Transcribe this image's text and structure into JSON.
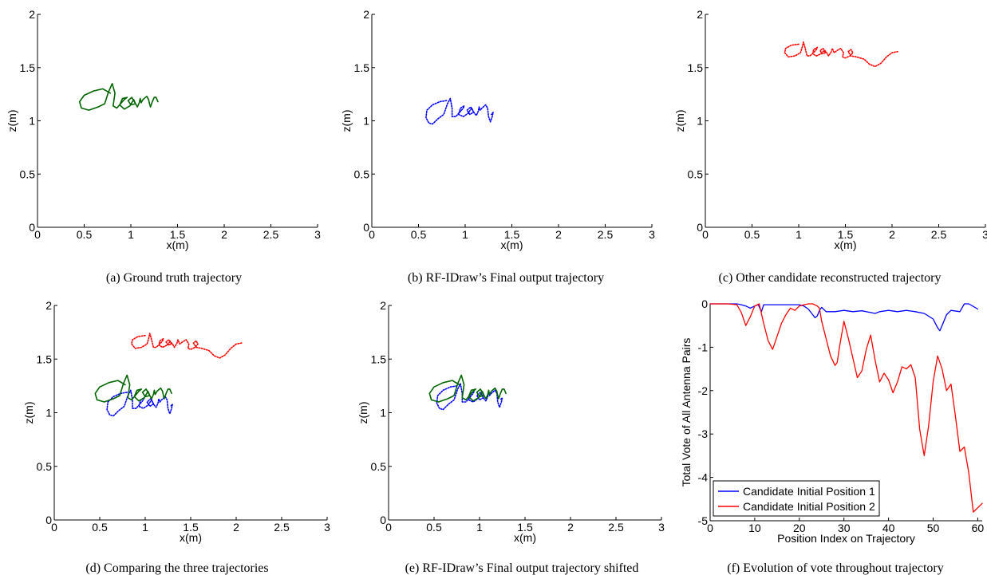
{
  "chart_data": [
    {
      "id": "a",
      "type": "line",
      "caption": "(a) Ground truth trajectory",
      "xlabel": "x(m)",
      "ylabel": "z(m)",
      "xlim": [
        0,
        3
      ],
      "ylim": [
        0,
        2
      ],
      "xticks": [
        "0",
        "0.5",
        "1",
        "1.5",
        "2",
        "2.5",
        "3"
      ],
      "yticks": [
        "0",
        "0.5",
        "1",
        "1.5",
        "2"
      ],
      "series": [
        {
          "trajectory": "ground_truth",
          "color": "#006400",
          "style": "solid",
          "offset": [
            0,
            0
          ]
        }
      ]
    },
    {
      "id": "b",
      "type": "line",
      "caption": "(b) RF-IDraw’s Final output trajectory",
      "xlabel": "x(m)",
      "ylabel": "z(m)",
      "xlim": [
        0,
        3
      ],
      "ylim": [
        0,
        2
      ],
      "xticks": [
        "0",
        "0.5",
        "1",
        "1.5",
        "2",
        "2.5",
        "3"
      ],
      "yticks": [
        "0",
        "0.5",
        "1",
        "1.5",
        "2"
      ],
      "series": [
        {
          "trajectory": "output",
          "color": "#0000ff",
          "style": "dotted",
          "offset": [
            0.07,
            -0.06
          ]
        }
      ]
    },
    {
      "id": "c",
      "type": "line",
      "caption": "(c) Other candidate reconstructed trajectory",
      "xlabel": "x(m)",
      "ylabel": "z(m)",
      "xlim": [
        0,
        3
      ],
      "ylim": [
        0,
        2
      ],
      "xticks": [
        "0",
        "0.5",
        "1",
        "1.5",
        "2",
        "2.5",
        "3"
      ],
      "yticks": [
        "0",
        "0.5",
        "1",
        "1.5",
        "2"
      ],
      "series": [
        {
          "trajectory": "candidate",
          "color": "#ff0000",
          "style": "dotted",
          "offset": [
            0.4,
            0.24
          ]
        }
      ]
    },
    {
      "id": "d",
      "type": "line",
      "caption": "(d) Comparing the three trajectories",
      "xlabel": "x(m)",
      "ylabel": "z(m)",
      "xlim": [
        0,
        3
      ],
      "ylim": [
        0,
        2
      ],
      "xticks": [
        "0",
        "0.5",
        "1",
        "1.5",
        "2",
        "2.5",
        "3"
      ],
      "yticks": [
        "0",
        "0.5",
        "1",
        "1.5",
        "2"
      ],
      "series": [
        {
          "trajectory": "candidate",
          "color": "#ff0000",
          "style": "dotted",
          "offset": [
            0.4,
            0.24
          ]
        },
        {
          "trajectory": "output",
          "color": "#0000ff",
          "style": "dotted",
          "offset": [
            0.07,
            -0.06
          ]
        },
        {
          "trajectory": "ground_truth",
          "color": "#006400",
          "style": "solid",
          "offset": [
            0,
            0
          ]
        }
      ]
    },
    {
      "id": "e",
      "type": "line",
      "caption": "(e) RF-IDraw’s Final output trajectory shifted",
      "xlabel": "x(m)",
      "ylabel": "z(m)",
      "xlim": [
        0,
        3
      ],
      "ylim": [
        0,
        2
      ],
      "xticks": [
        "0",
        "0.5",
        "1",
        "1.5",
        "2",
        "2.5",
        "3"
      ],
      "yticks": [
        "0",
        "0.5",
        "1",
        "1.5",
        "2"
      ],
      "series": [
        {
          "trajectory": "output",
          "color": "#0000ff",
          "style": "dotted",
          "offset": [
            0.02,
            0.0
          ]
        },
        {
          "trajectory": "ground_truth",
          "color": "#006400",
          "style": "solid",
          "offset": [
            0,
            0
          ]
        }
      ]
    },
    {
      "id": "f",
      "type": "line",
      "caption": "(f) Evolution of vote throughout trajectory",
      "xlabel": "Position Index on Trajectory",
      "ylabel": "Total Vote of All Antenna Pairs",
      "xlim": [
        0,
        61
      ],
      "ylim": [
        -5,
        0
      ],
      "xticks": [
        "0",
        "10",
        "20",
        "30",
        "40",
        "50",
        "60"
      ],
      "yticks": [
        "-5",
        "-4",
        "-3",
        "-2",
        "-1",
        "0"
      ],
      "legend_position": "bottom-left",
      "series": [
        {
          "name": "Candidate Initial Position 1",
          "color": "#0000ff",
          "x": [
            0,
            2,
            4,
            6,
            7,
            8,
            9,
            10,
            10.8,
            11.5,
            12,
            14,
            16,
            18,
            20,
            21,
            22,
            23,
            23.5,
            24,
            24.5,
            25,
            26,
            28,
            30,
            32,
            34,
            36,
            37,
            38,
            40,
            42,
            44,
            46,
            48,
            50,
            51,
            51.5,
            52,
            53,
            54,
            56,
            57,
            58,
            60
          ],
          "y": [
            0,
            0,
            0,
            0,
            -0.02,
            -0.05,
            -0.1,
            -0.05,
            -0.02,
            -0.18,
            -0.02,
            -0.02,
            -0.02,
            -0.02,
            -0.02,
            -0.05,
            -0.12,
            -0.25,
            -0.32,
            -0.28,
            -0.15,
            -0.08,
            -0.18,
            -0.18,
            -0.15,
            -0.18,
            -0.16,
            -0.2,
            -0.22,
            -0.18,
            -0.15,
            -0.18,
            -0.15,
            -0.18,
            -0.22,
            -0.35,
            -0.55,
            -0.62,
            -0.5,
            -0.25,
            -0.15,
            -0.18,
            0,
            0,
            -0.12
          ]
        },
        {
          "name": "Candidate Initial Position 2",
          "color": "#ff0000",
          "x": [
            0,
            2,
            4,
            6,
            7,
            8,
            9,
            10,
            11,
            12,
            13,
            14,
            15,
            16,
            17,
            18,
            19,
            20,
            21,
            22,
            23,
            24,
            24.5,
            25,
            26,
            27,
            28,
            28.5,
            29,
            30,
            31,
            32,
            33,
            34,
            35,
            36,
            37,
            38,
            39,
            40,
            41,
            42,
            43,
            44,
            45,
            46,
            47,
            48,
            49,
            50,
            51,
            52,
            53,
            54,
            55,
            56,
            57,
            58,
            59,
            60,
            61
          ],
          "y": [
            0,
            0,
            0,
            -0.02,
            -0.2,
            -0.5,
            -0.3,
            -0.05,
            0,
            -0.45,
            -0.85,
            -1.05,
            -0.75,
            -0.45,
            -0.25,
            -0.1,
            -0.15,
            -0.05,
            -0.02,
            0,
            0,
            -0.05,
            -0.1,
            -0.4,
            -0.8,
            -1.2,
            -1.42,
            -1.35,
            -1.0,
            -0.4,
            -0.8,
            -1.25,
            -1.7,
            -1.55,
            -1.05,
            -0.72,
            -1.3,
            -1.8,
            -1.6,
            -1.75,
            -2.05,
            -1.8,
            -1.45,
            -1.5,
            -1.4,
            -1.7,
            -2.9,
            -3.5,
            -2.8,
            -1.8,
            -1.2,
            -1.5,
            -2.0,
            -1.85,
            -2.6,
            -3.4,
            -3.3,
            -3.9,
            -4.8,
            -4.7,
            -4.6
          ]
        }
      ]
    }
  ],
  "trajectories": {
    "ground_truth": [
      [
        0.78,
        1.26
      ],
      [
        0.7,
        1.3
      ],
      [
        0.6,
        1.28
      ],
      [
        0.5,
        1.24
      ],
      [
        0.45,
        1.18
      ],
      [
        0.47,
        1.12
      ],
      [
        0.55,
        1.1
      ],
      [
        0.65,
        1.13
      ],
      [
        0.72,
        1.16
      ],
      [
        0.76,
        1.27
      ],
      [
        0.8,
        1.35
      ],
      [
        0.83,
        1.26
      ],
      [
        0.81,
        1.14
      ],
      [
        0.85,
        1.12
      ],
      [
        0.89,
        1.16
      ],
      [
        0.93,
        1.2
      ],
      [
        0.96,
        1.22
      ],
      [
        0.91,
        1.21
      ],
      [
        0.88,
        1.15
      ],
      [
        0.93,
        1.11
      ],
      [
        0.99,
        1.14
      ],
      [
        1.03,
        1.2
      ],
      [
        1.05,
        1.16
      ],
      [
        1.0,
        1.15
      ],
      [
        0.97,
        1.19
      ],
      [
        1.01,
        1.22
      ],
      [
        1.05,
        1.16
      ],
      [
        1.07,
        1.13
      ],
      [
        1.09,
        1.17
      ],
      [
        1.1,
        1.21
      ],
      [
        1.11,
        1.17
      ],
      [
        1.13,
        1.2
      ],
      [
        1.17,
        1.23
      ],
      [
        1.19,
        1.2
      ],
      [
        1.2,
        1.16
      ],
      [
        1.21,
        1.13
      ],
      [
        1.23,
        1.18
      ],
      [
        1.25,
        1.22
      ],
      [
        1.27,
        1.22
      ],
      [
        1.29,
        1.18
      ]
    ],
    "output": [
      [
        0.73,
        1.25
      ],
      [
        0.66,
        1.24
      ],
      [
        0.58,
        1.21
      ],
      [
        0.52,
        1.16
      ],
      [
        0.51,
        1.09
      ],
      [
        0.54,
        1.04
      ],
      [
        0.58,
        1.03
      ],
      [
        0.64,
        1.08
      ],
      [
        0.7,
        1.12
      ],
      [
        0.74,
        1.22
      ],
      [
        0.77,
        1.27
      ],
      [
        0.79,
        1.18
      ],
      [
        0.79,
        1.1
      ],
      [
        0.83,
        1.1
      ],
      [
        0.87,
        1.14
      ],
      [
        0.91,
        1.18
      ],
      [
        0.92,
        1.2
      ],
      [
        0.88,
        1.18
      ],
      [
        0.86,
        1.12
      ],
      [
        0.91,
        1.1
      ],
      [
        0.96,
        1.13
      ],
      [
        1.0,
        1.18
      ],
      [
        1.02,
        1.14
      ],
      [
        0.98,
        1.12
      ],
      [
        0.95,
        1.16
      ],
      [
        0.99,
        1.19
      ],
      [
        1.03,
        1.13
      ],
      [
        1.05,
        1.11
      ],
      [
        1.07,
        1.15
      ],
      [
        1.08,
        1.19
      ],
      [
        1.09,
        1.16
      ],
      [
        1.11,
        1.18
      ],
      [
        1.15,
        1.21
      ],
      [
        1.17,
        1.18
      ],
      [
        1.18,
        1.1
      ],
      [
        1.2,
        1.05
      ],
      [
        1.22,
        1.1
      ],
      [
        1.23,
        1.14
      ],
      [
        1.21,
        1.12
      ]
    ],
    "candidate": [
      [
        0.6,
        1.48
      ],
      [
        0.52,
        1.47
      ],
      [
        0.46,
        1.44
      ],
      [
        0.45,
        1.4
      ],
      [
        0.49,
        1.36
      ],
      [
        0.56,
        1.37
      ],
      [
        0.62,
        1.4
      ],
      [
        0.64,
        1.46
      ],
      [
        0.65,
        1.5
      ],
      [
        0.67,
        1.44
      ],
      [
        0.69,
        1.37
      ],
      [
        0.72,
        1.37
      ],
      [
        0.76,
        1.4
      ],
      [
        0.79,
        1.43
      ],
      [
        0.8,
        1.45
      ],
      [
        0.76,
        1.43
      ],
      [
        0.75,
        1.39
      ],
      [
        0.79,
        1.37
      ],
      [
        0.84,
        1.39
      ],
      [
        0.87,
        1.42
      ],
      [
        0.89,
        1.4
      ],
      [
        0.85,
        1.39
      ],
      [
        0.83,
        1.42
      ],
      [
        0.86,
        1.44
      ],
      [
        0.9,
        1.4
      ],
      [
        0.92,
        1.37
      ],
      [
        0.95,
        1.41
      ],
      [
        0.96,
        1.44
      ],
      [
        0.98,
        1.4
      ],
      [
        1.01,
        1.42
      ],
      [
        1.05,
        1.44
      ],
      [
        1.08,
        1.4
      ],
      [
        1.07,
        1.36
      ],
      [
        1.1,
        1.35
      ],
      [
        1.15,
        1.37
      ],
      [
        1.18,
        1.4
      ],
      [
        1.16,
        1.43
      ],
      [
        1.13,
        1.41
      ],
      [
        1.16,
        1.37
      ],
      [
        1.22,
        1.36
      ],
      [
        1.3,
        1.34
      ],
      [
        1.36,
        1.29
      ],
      [
        1.42,
        1.27
      ],
      [
        1.48,
        1.3
      ],
      [
        1.54,
        1.36
      ],
      [
        1.6,
        1.4
      ],
      [
        1.66,
        1.41
      ]
    ]
  }
}
